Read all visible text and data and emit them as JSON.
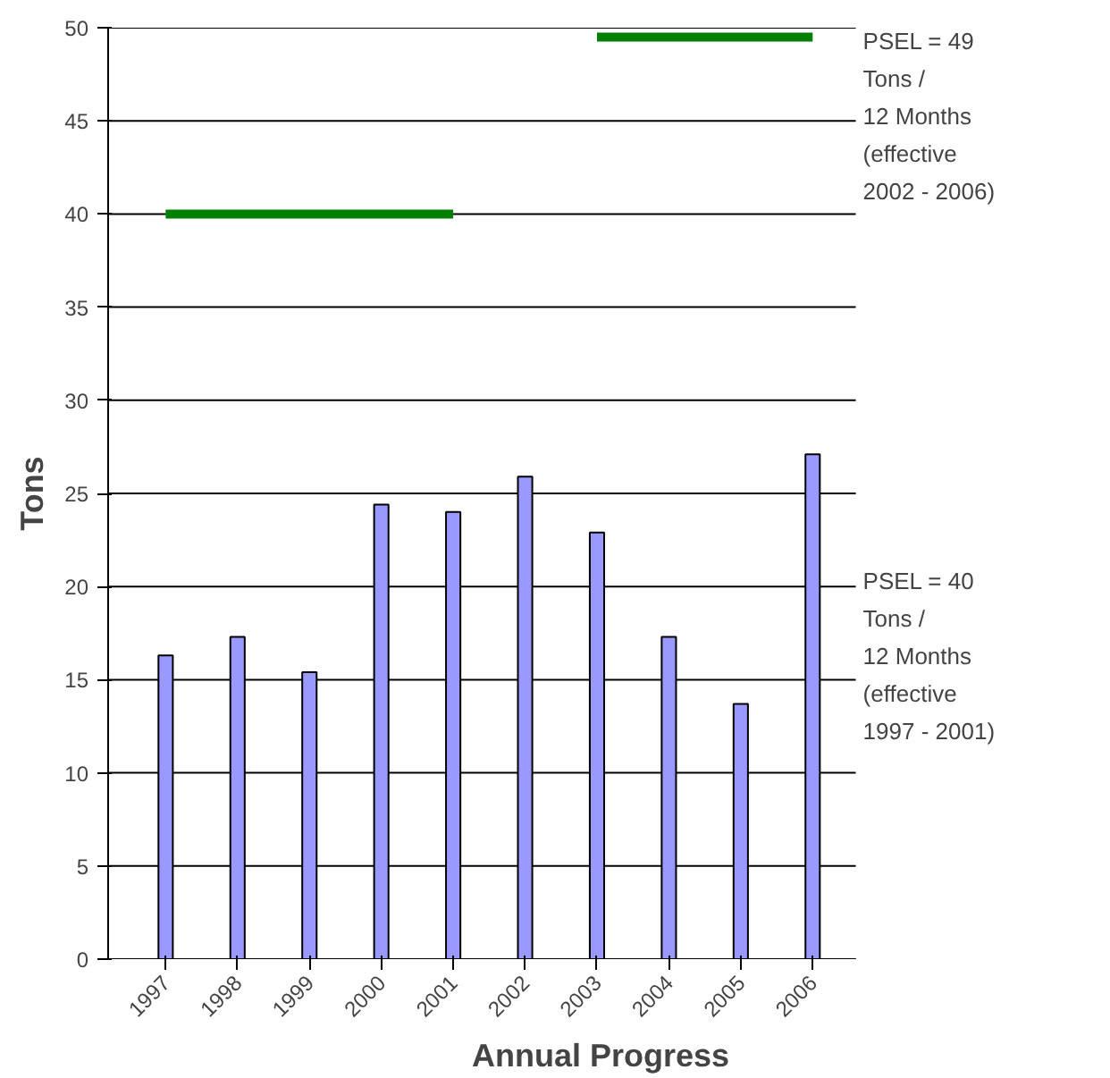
{
  "chart_data": {
    "type": "bar",
    "xlabel": "Annual Progress",
    "ylabel": "Tons",
    "categories": [
      "1997",
      "1998",
      "1999",
      "2000",
      "2001",
      "2002",
      "2003",
      "2004",
      "2005",
      "2006"
    ],
    "series": [
      {
        "color": "#9999ff",
        "values": [
          16.3,
          17.3,
          15.4,
          24.4,
          24.0,
          25.9,
          22.9,
          17.3,
          13.7,
          27.1
        ]
      },
      {
        "type": "line",
        "color": "#008000",
        "values": [
          40,
          40,
          40,
          40,
          40,
          null,
          null,
          null,
          null,
          null
        ]
      },
      {
        "type": "line",
        "color": "#008000",
        "values": [
          null,
          null,
          null,
          null,
          null,
          null,
          49.5,
          49.5,
          49.5,
          49.5
        ]
      }
    ],
    "ylim": [
      0,
      50
    ],
    "yticks": [
      0,
      5,
      10,
      15,
      20,
      25,
      30,
      35,
      40,
      45,
      50
    ],
    "grid": "y",
    "annotations": [
      "PSEL = 49\n Tons /\n12 Months\n(effective\n2002 - 2006)",
      "PSEL = 40\n Tons /\n12 Months\n(effective\n1997 - 2001)"
    ]
  }
}
